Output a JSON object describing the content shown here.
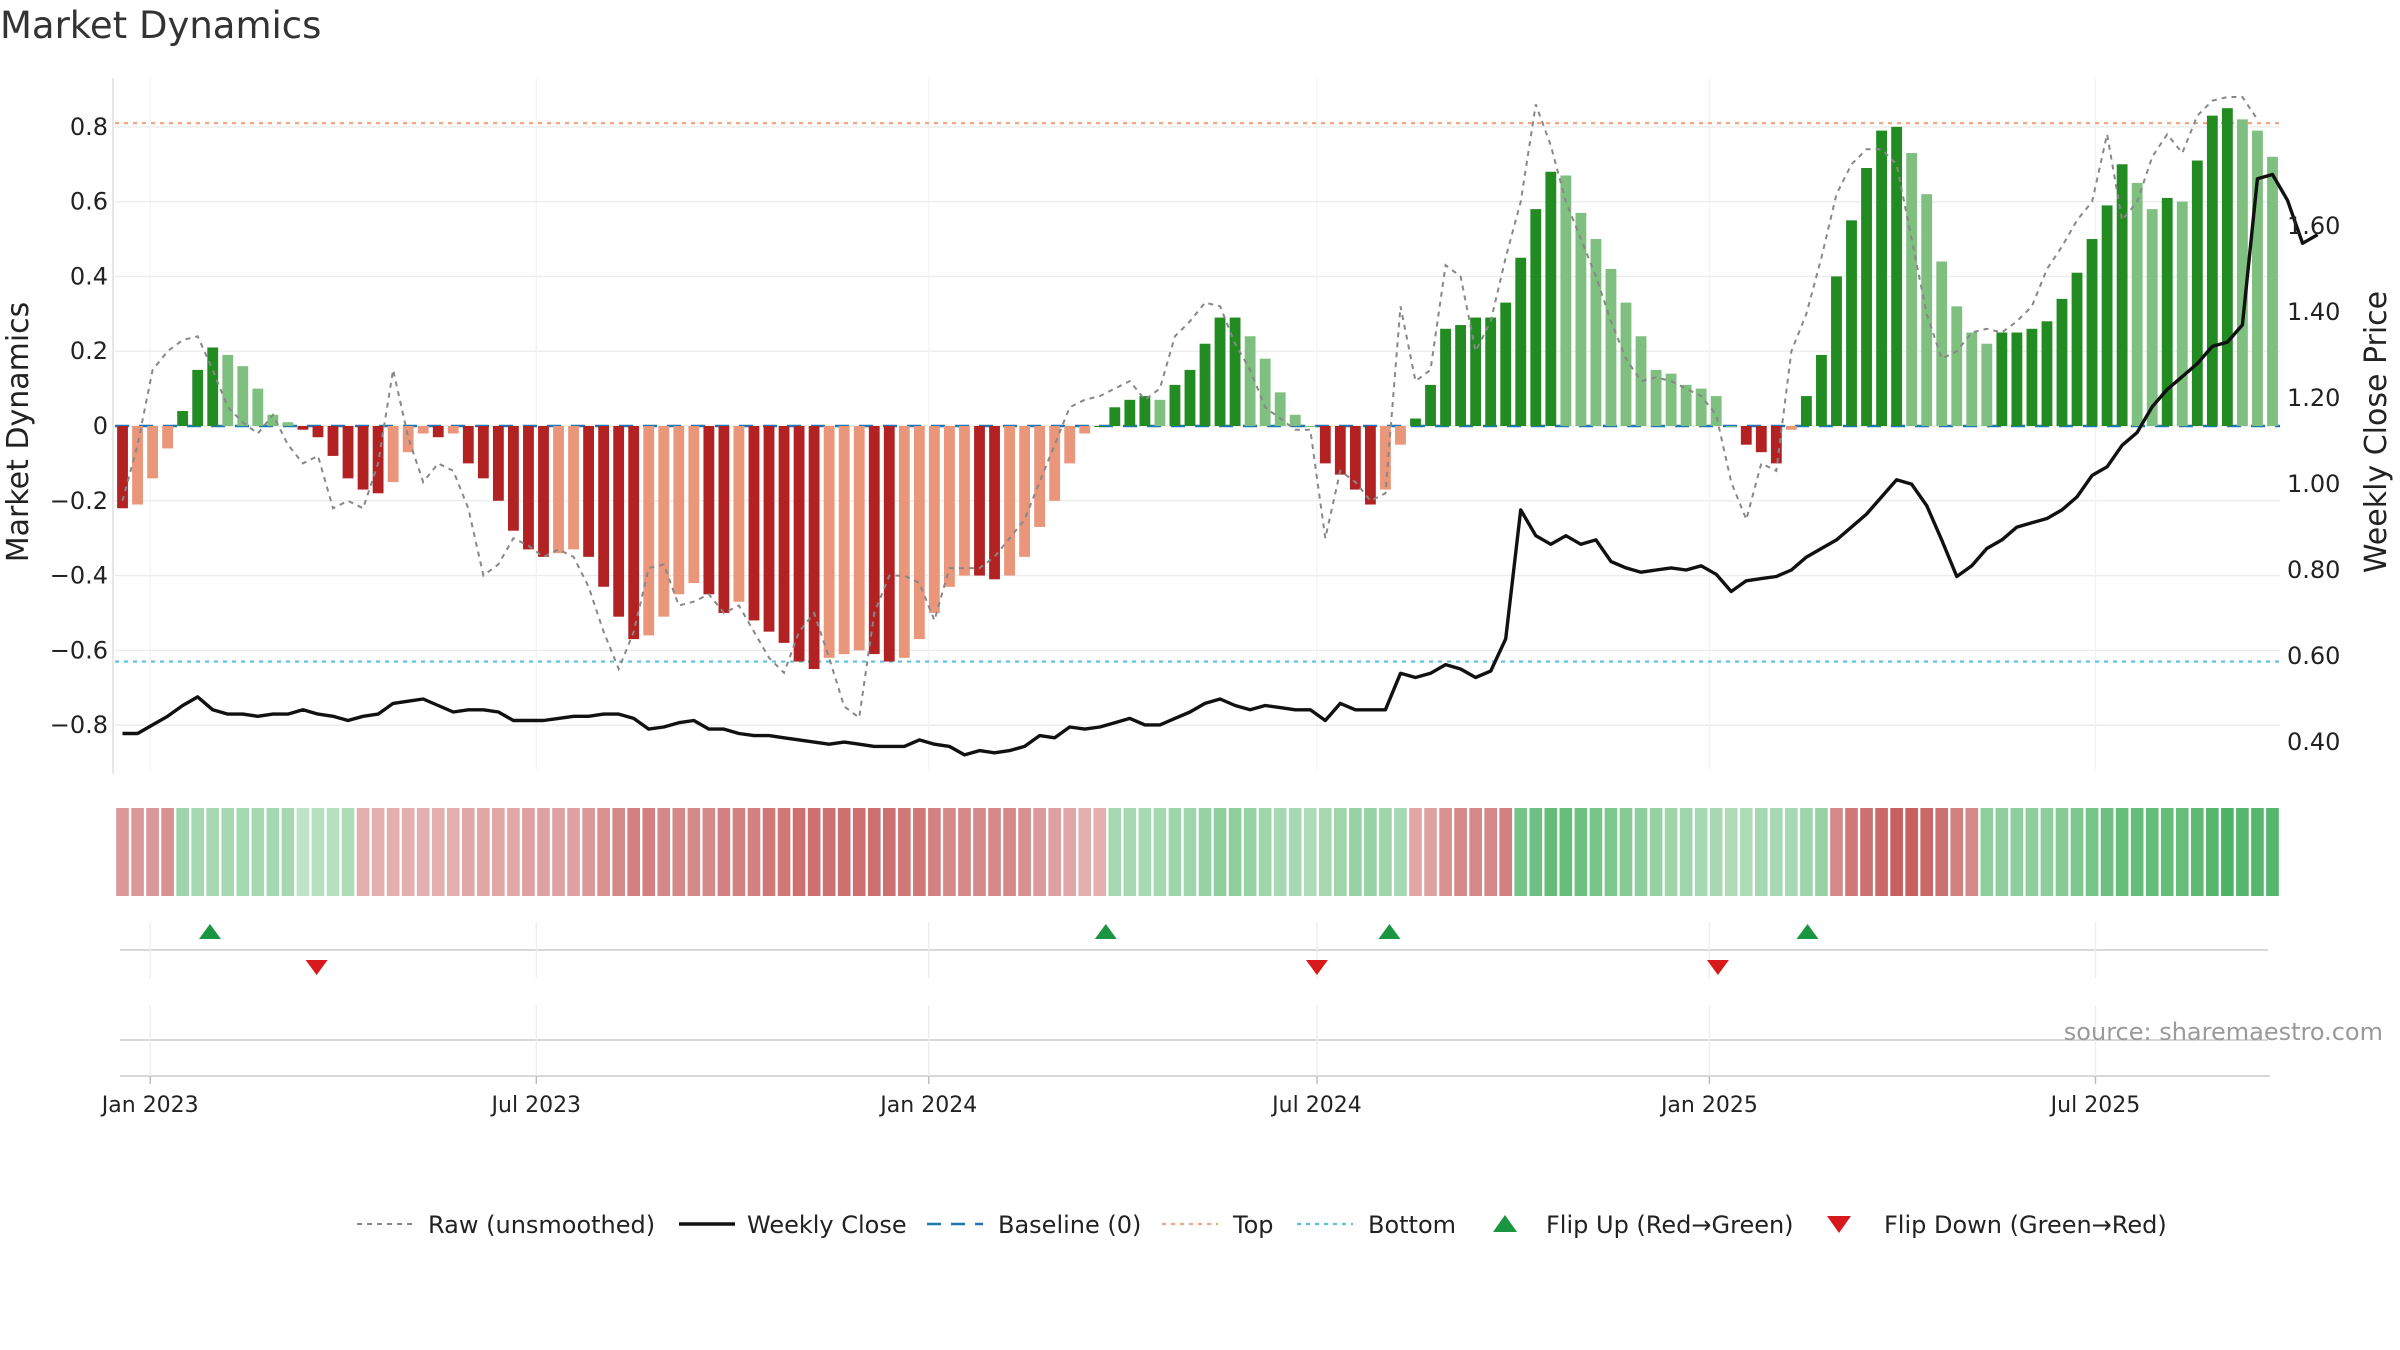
{
  "chart_data": {
    "type": "bar",
    "title": "Market Dynamics",
    "ylabel": "Market Dynamics",
    "y2label": "Weekly Close Price",
    "ylim": [
      -0.92,
      0.92
    ],
    "y2lim": [
      0.335,
      1.935
    ],
    "yticks": [
      "0.8",
      "0.6",
      "0.4",
      "0.2",
      "0",
      "−0.2",
      "−0.4",
      "−0.6",
      "−0.8"
    ],
    "yticks_values": [
      0.8,
      0.6,
      0.4,
      0.2,
      0,
      -0.2,
      -0.4,
      -0.6,
      -0.8
    ],
    "y2ticks": [
      "1.60",
      "1.40",
      "1.20",
      "1.00",
      "0.80",
      "0.60",
      "0.40"
    ],
    "y2ticks_values": [
      1.6,
      1.4,
      1.2,
      1.0,
      0.8,
      0.6,
      0.4
    ],
    "xticks": [
      "Jan 2023",
      "Jul 2023",
      "Jan 2024",
      "Jul 2024",
      "Jan 2025",
      "Jul 2025"
    ],
    "xticks_dates": [
      "2023-01-01",
      "2023-07-01",
      "2024-01-01",
      "2024-07-01",
      "2025-01-01",
      "2025-07-01"
    ],
    "start_date": "2022-12-19",
    "end_date": "2025-09-22",
    "top_line": 0.81,
    "bottom_line": -0.63,
    "baseline": 0,
    "grid": true,
    "legend_position": "bottom",
    "source": "source: sharemaestro.com",
    "legend": [
      "Raw (unsmoothed)",
      "Weekly Close",
      "Baseline (0)",
      "Top",
      "Bottom",
      "Flip Up (Red→Green)",
      "Flip Down (Green→Red)"
    ],
    "colors": {
      "strong_green": "#228b22",
      "light_green": "#7fbf7f",
      "strong_red": "#b22222",
      "light_red": "#e9967a",
      "close": "#111111",
      "raw": "#888888",
      "baseline": "#1f77b4",
      "top": "#f4a582",
      "bottom": "#5bc0de",
      "flip_up": "#1a9641",
      "flip_down": "#d7191c"
    },
    "market_dynamics": [
      -0.22,
      -0.21,
      -0.14,
      -0.06,
      0.04,
      0.15,
      0.21,
      0.19,
      0.16,
      0.1,
      0.03,
      0.01,
      -0.01,
      -0.03,
      -0.08,
      -0.14,
      -0.17,
      -0.18,
      -0.15,
      -0.07,
      -0.02,
      -0.03,
      -0.02,
      -0.1,
      -0.14,
      -0.2,
      -0.28,
      -0.33,
      -0.35,
      -0.34,
      -0.33,
      -0.35,
      -0.43,
      -0.51,
      -0.57,
      -0.56,
      -0.51,
      -0.45,
      -0.42,
      -0.45,
      -0.5,
      -0.47,
      -0.52,
      -0.55,
      -0.58,
      -0.63,
      -0.65,
      -0.62,
      -0.61,
      -0.6,
      -0.61,
      -0.63,
      -0.62,
      -0.57,
      -0.5,
      -0.43,
      -0.4,
      -0.4,
      -0.41,
      -0.4,
      -0.35,
      -0.27,
      -0.2,
      -0.1,
      -0.02,
      0.0,
      0.05,
      0.07,
      0.08,
      0.07,
      0.11,
      0.15,
      0.22,
      0.29,
      0.29,
      0.24,
      0.18,
      0.09,
      0.03,
      0.0,
      -0.1,
      -0.13,
      -0.17,
      -0.21,
      -0.17,
      -0.05,
      0.02,
      0.11,
      0.26,
      0.27,
      0.29,
      0.29,
      0.33,
      0.45,
      0.58,
      0.68,
      0.67,
      0.57,
      0.5,
      0.42,
      0.33,
      0.24,
      0.15,
      0.14,
      0.11,
      0.1,
      0.08,
      0.0,
      -0.05,
      -0.07,
      -0.1,
      -0.01,
      0.08,
      0.19,
      0.4,
      0.55,
      0.69,
      0.79,
      0.8,
      0.73,
      0.62,
      0.44,
      0.32,
      0.25,
      0.22,
      0.25,
      0.25,
      0.26,
      0.28,
      0.34,
      0.41,
      0.5,
      0.59,
      0.7,
      0.65,
      0.58,
      0.61,
      0.6,
      0.71,
      0.83,
      0.85,
      0.82,
      0.79,
      0.72
    ],
    "raw_unsmoothed": [
      -0.2,
      -0.05,
      0.15,
      0.2,
      0.23,
      0.24,
      0.15,
      0.05,
      0.01,
      -0.02,
      0.03,
      -0.05,
      -0.1,
      -0.08,
      -0.22,
      -0.2,
      -0.22,
      -0.1,
      0.15,
      -0.03,
      -0.15,
      -0.1,
      -0.12,
      -0.22,
      -0.4,
      -0.37,
      -0.3,
      -0.32,
      -0.35,
      -0.33,
      -0.35,
      -0.43,
      -0.55,
      -0.65,
      -0.55,
      -0.38,
      -0.37,
      -0.48,
      -0.47,
      -0.45,
      -0.5,
      -0.48,
      -0.55,
      -0.62,
      -0.66,
      -0.55,
      -0.5,
      -0.62,
      -0.75,
      -0.78,
      -0.5,
      -0.4,
      -0.4,
      -0.42,
      -0.52,
      -0.38,
      -0.38,
      -0.38,
      -0.35,
      -0.3,
      -0.25,
      -0.15,
      -0.05,
      0.05,
      0.07,
      0.08,
      0.1,
      0.12,
      0.07,
      0.1,
      0.24,
      0.28,
      0.33,
      0.32,
      0.22,
      0.15,
      0.05,
      0.02,
      -0.01,
      -0.01,
      -0.3,
      -0.12,
      -0.15,
      -0.2,
      -0.18,
      0.32,
      0.12,
      0.15,
      0.43,
      0.4,
      0.2,
      0.28,
      0.45,
      0.6,
      0.86,
      0.75,
      0.6,
      0.5,
      0.4,
      0.28,
      0.18,
      0.12,
      0.13,
      0.12,
      0.1,
      0.08,
      0.03,
      -0.15,
      -0.25,
      -0.1,
      -0.12,
      0.2,
      0.3,
      0.45,
      0.62,
      0.7,
      0.74,
      0.74,
      0.7,
      0.5,
      0.3,
      0.18,
      0.2,
      0.25,
      0.26,
      0.25,
      0.28,
      0.32,
      0.42,
      0.48,
      0.55,
      0.6,
      0.78,
      0.55,
      0.6,
      0.72,
      0.78,
      0.73,
      0.83,
      0.87,
      0.88,
      0.88,
      0.82
    ],
    "weekly_close": [
      0.42,
      0.42,
      0.44,
      0.46,
      0.485,
      0.505,
      0.475,
      0.465,
      0.465,
      0.46,
      0.465,
      0.465,
      0.475,
      0.465,
      0.46,
      0.45,
      0.46,
      0.465,
      0.49,
      0.495,
      0.5,
      0.485,
      0.47,
      0.475,
      0.475,
      0.47,
      0.45,
      0.45,
      0.45,
      0.455,
      0.46,
      0.46,
      0.465,
      0.465,
      0.455,
      0.43,
      0.435,
      0.445,
      0.45,
      0.43,
      0.43,
      0.42,
      0.415,
      0.415,
      0.41,
      0.405,
      0.4,
      0.395,
      0.4,
      0.395,
      0.39,
      0.39,
      0.39,
      0.405,
      0.395,
      0.39,
      0.37,
      0.38,
      0.375,
      0.38,
      0.39,
      0.415,
      0.41,
      0.435,
      0.43,
      0.435,
      0.445,
      0.455,
      0.44,
      0.44,
      0.455,
      0.47,
      0.49,
      0.5,
      0.485,
      0.475,
      0.485,
      0.48,
      0.475,
      0.475,
      0.45,
      0.49,
      0.475,
      0.475,
      0.475,
      0.56,
      0.55,
      0.56,
      0.58,
      0.57,
      0.55,
      0.565,
      0.64,
      0.94,
      0.88,
      0.86,
      0.88,
      0.86,
      0.87,
      0.82,
      0.805,
      0.795,
      0.8,
      0.805,
      0.8,
      0.81,
      0.79,
      0.75,
      0.775,
      0.78,
      0.785,
      0.8,
      0.83,
      0.85,
      0.87,
      0.9,
      0.93,
      0.97,
      1.01,
      1.0,
      0.95,
      0.87,
      0.785,
      0.81,
      0.85,
      0.87,
      0.9,
      0.91,
      0.92,
      0.94,
      0.97,
      1.02,
      1.04,
      1.09,
      1.12,
      1.18,
      1.22,
      1.25,
      1.28,
      1.32,
      1.33,
      1.37,
      1.71,
      1.72,
      1.66,
      1.56,
      1.58
    ],
    "regime_strip": {
      "intensity": [
        0.4,
        0.4,
        0.4,
        0.45,
        0.35,
        0.3,
        0.3,
        0.3,
        0.3,
        0.3,
        0.3,
        0.3,
        0.15,
        0.2,
        0.2,
        0.25,
        0.25,
        0.25,
        0.25,
        0.25,
        0.25,
        0.25,
        0.25,
        0.3,
        0.3,
        0.3,
        0.3,
        0.35,
        0.35,
        0.35,
        0.35,
        0.4,
        0.45,
        0.5,
        0.55,
        0.55,
        0.5,
        0.5,
        0.5,
        0.5,
        0.55,
        0.55,
        0.55,
        0.6,
        0.6,
        0.65,
        0.65,
        0.65,
        0.65,
        0.65,
        0.65,
        0.65,
        0.6,
        0.6,
        0.55,
        0.5,
        0.5,
        0.5,
        0.5,
        0.5,
        0.45,
        0.4,
        0.35,
        0.3,
        0.25,
        0.25,
        0.3,
        0.3,
        0.3,
        0.3,
        0.35,
        0.35,
        0.4,
        0.45,
        0.45,
        0.4,
        0.35,
        0.3,
        0.3,
        0.25,
        0.3,
        0.35,
        0.4,
        0.4,
        0.35,
        0.3,
        0.3,
        0.35,
        0.45,
        0.5,
        0.5,
        0.5,
        0.55,
        0.6,
        0.65,
        0.7,
        0.7,
        0.65,
        0.6,
        0.55,
        0.5,
        0.45,
        0.4,
        0.35,
        0.35,
        0.3,
        0.3,
        0.25,
        0.25,
        0.3,
        0.3,
        0.3,
        0.35,
        0.4,
        0.5,
        0.6,
        0.65,
        0.7,
        0.75,
        0.75,
        0.7,
        0.65,
        0.55,
        0.5,
        0.45,
        0.45,
        0.45,
        0.45,
        0.45,
        0.5,
        0.55,
        0.6,
        0.65,
        0.7,
        0.7,
        0.7,
        0.7,
        0.7,
        0.75,
        0.8,
        0.85,
        0.8,
        0.8,
        0.8
      ],
      "sign": [
        -1,
        -1,
        -1,
        -1,
        -1,
        -1,
        1,
        1,
        1,
        1,
        1,
        1,
        1,
        1,
        1,
        1,
        1,
        -1,
        -1,
        -1,
        -1,
        -1,
        -1,
        -1,
        -1,
        -1,
        -1,
        -1,
        -1,
        -1,
        -1,
        -1,
        -1,
        -1,
        -1,
        -1,
        -1,
        -1,
        -1,
        -1,
        -1,
        -1,
        -1,
        -1,
        -1,
        -1,
        -1,
        -1,
        -1,
        -1,
        -1,
        -1,
        -1,
        -1,
        -1,
        -1,
        -1,
        -1,
        -1,
        -1,
        -1,
        -1,
        -1,
        -1,
        -1,
        -1,
        1,
        1,
        1,
        1,
        1,
        1,
        1,
        1,
        1,
        1,
        1,
        1,
        1,
        1,
        1,
        1,
        1,
        1,
        1,
        1,
        1,
        1,
        1,
        1,
        1,
        1,
        1,
        1,
        1,
        1,
        1,
        1,
        1,
        1,
        1,
        1,
        1,
        1,
        1,
        1,
        1,
        1,
        1,
        1,
        1,
        1,
        1,
        1,
        1,
        1,
        1,
        1,
        1,
        1,
        1,
        1,
        1,
        1,
        1,
        1,
        1,
        1,
        1,
        1,
        1,
        1,
        1,
        1,
        1,
        1,
        1,
        1,
        1,
        1,
        1,
        1,
        1,
        1,
        1,
        1
      ],
      "sign_override_ranges": [
        [
          4,
          15,
          1
        ],
        [
          16,
          65,
          -1
        ],
        [
          66,
          85,
          1
        ],
        [
          86,
          92,
          -1
        ],
        [
          93,
          113,
          1
        ],
        [
          114,
          123,
          -1
        ],
        [
          124,
          146,
          1
        ]
      ]
    },
    "flip_up_dates": [
      "2023-01-29",
      "2024-03-24",
      "2024-08-04",
      "2025-02-16"
    ],
    "flip_down_dates": [
      "2023-03-20",
      "2024-07-01",
      "2025-01-05"
    ]
  }
}
